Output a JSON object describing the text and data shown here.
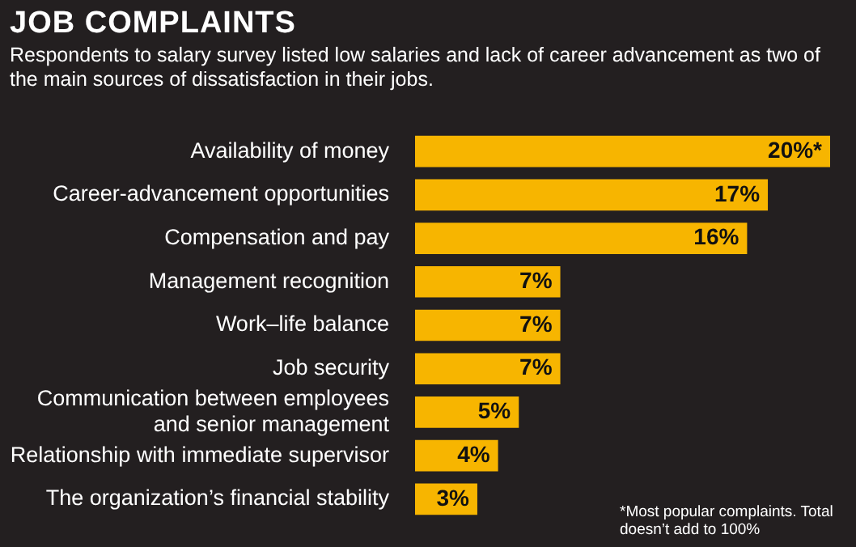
{
  "chart_data": {
    "type": "bar",
    "orientation": "horizontal",
    "title": "JOB COMPLAINTS",
    "subtitle": "Respondents to salary survey listed low salaries and lack of career advancement as two of the main sources of dissatisfaction in their jobs.",
    "categories": [
      "Availability of money",
      "Career-advancement opportunities",
      "Compensation and pay",
      "Management recognition",
      "Work–life balance",
      "Job security",
      "Communication between employees and senior management",
      "Relationship with immediate supervisor",
      "The organization’s financial stability"
    ],
    "values": [
      20,
      17,
      16,
      7,
      7,
      7,
      5,
      4,
      3
    ],
    "color": "#f7b500",
    "value_labels": [
      "20%*",
      "17%",
      "16%",
      "7%",
      "7%",
      "7%",
      "5%",
      "4%",
      "3%"
    ],
    "tick_labels": "y",
    "legend": false,
    "annotations": [
      "*Most popular complaints. Total doesn’t add to 100%"
    ]
  }
}
